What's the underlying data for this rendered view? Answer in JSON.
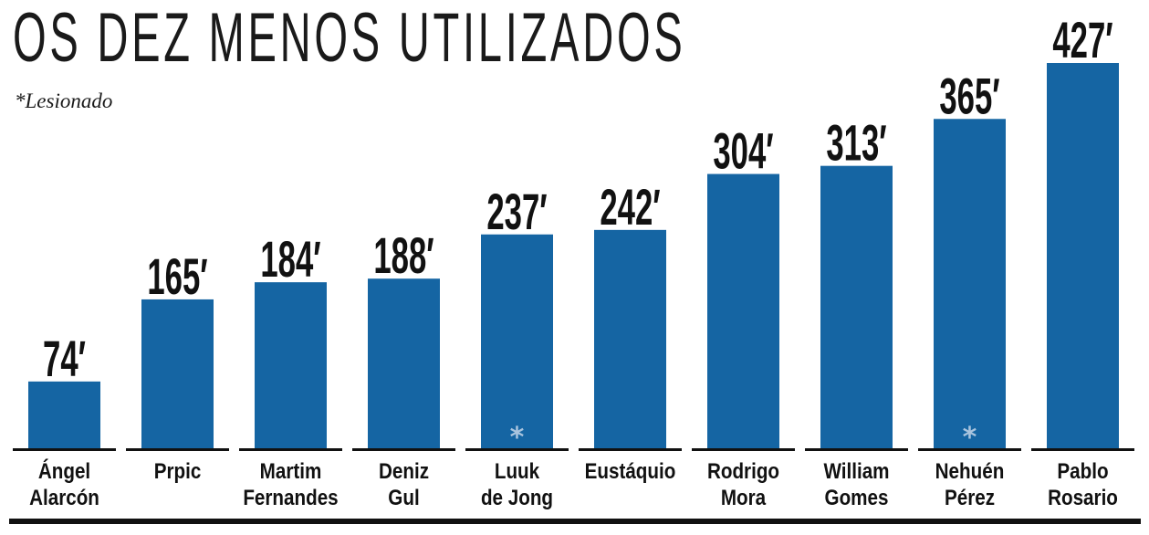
{
  "chart_data": {
    "type": "bar",
    "title": "OS DEZ MENOS UTILIZADOS",
    "note": "*Lesionado",
    "unit_suffix": "′",
    "ylim": [
      0,
      427
    ],
    "bar_color": "#1565a3",
    "marker_color": "#a9c4de",
    "injury_marker": "*",
    "categories": [
      [
        "Ángel",
        "Alarcón"
      ],
      [
        "Prpic"
      ],
      [
        "Martim",
        "Fernandes"
      ],
      [
        "Deniz",
        "Gul"
      ],
      [
        "Luuk",
        "de Jong"
      ],
      [
        "Eustáquio"
      ],
      [
        "Rodrigo",
        "Mora"
      ],
      [
        "William",
        "Gomes"
      ],
      [
        "Nehuén",
        "Pérez"
      ],
      [
        "Pablo",
        "Rosario"
      ]
    ],
    "values": [
      74,
      165,
      184,
      188,
      237,
      242,
      304,
      313,
      365,
      427
    ],
    "injured": [
      false,
      false,
      false,
      false,
      true,
      false,
      false,
      false,
      true,
      false
    ]
  }
}
